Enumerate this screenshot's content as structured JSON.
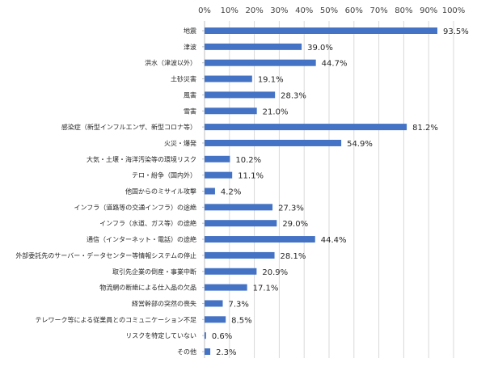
{
  "chart_data": {
    "type": "bar",
    "orientation": "horizontal",
    "categories": [
      "地震",
      "津波",
      "洪水（津波以外）",
      "土砂災害",
      "風害",
      "雪害",
      "感染症（新型インフルエンザ、新型コロナ等）",
      "火災・爆発",
      "大気・土壌・海洋汚染等の環境リスク",
      "テロ・紛争（国内外）",
      "他国からのミサイル攻撃",
      "インフラ（道路等の交通インフラ）の途絶",
      "インフラ（水道、ガス等）の途絶",
      "通信（インターネット・電話）の途絶",
      "外部委託先のサーバー・データセンター等情報システムの停止",
      "取引先企業の倒産・事業中断",
      "物流網の断絶による仕入品の欠品",
      "経営幹部の突然の喪失",
      "テレワーク等による従業員とのコミュニケーション不足",
      "リスクを特定していない",
      "その他"
    ],
    "values": [
      93.5,
      39.0,
      44.7,
      19.1,
      28.3,
      21.0,
      81.2,
      54.9,
      10.2,
      11.1,
      4.2,
      27.3,
      29.0,
      44.4,
      28.1,
      20.9,
      17.1,
      7.3,
      8.5,
      0.6,
      2.3
    ],
    "value_labels": [
      "93.5%",
      "39.0%",
      "44.7%",
      "19.1%",
      "28.3%",
      "21.0%",
      "81.2%",
      "54.9%",
      "10.2%",
      "11.1%",
      "4.2%",
      "27.3%",
      "29.0%",
      "44.4%",
      "28.1%",
      "20.9%",
      "17.1%",
      "7.3%",
      "8.5%",
      "0.6%",
      "2.3%"
    ],
    "xlim": [
      0,
      100
    ],
    "x_ticks": [
      "0%",
      "10%",
      "20%",
      "30%",
      "40%",
      "50%",
      "60%",
      "70%",
      "80%",
      "90%",
      "100%"
    ],
    "x_axis_position": "top",
    "grid": true,
    "title": "",
    "xlabel": "",
    "ylabel": "",
    "bar_color": "#4472C4"
  }
}
